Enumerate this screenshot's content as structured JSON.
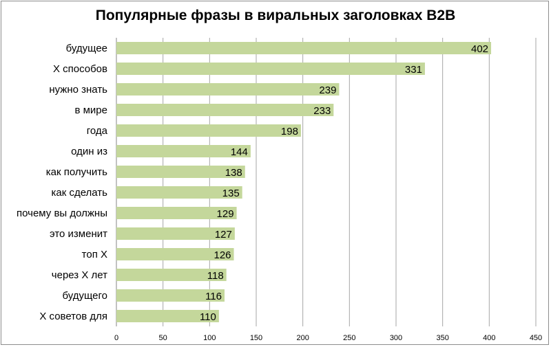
{
  "chart_data": {
    "type": "bar",
    "orientation": "horizontal",
    "title": "Популярные фразы в виральных заголовках B2B",
    "xlabel": "",
    "ylabel": "",
    "categories": [
      "будущее",
      "X способов",
      "нужно знать",
      "в мире",
      "года",
      "один из",
      "как получить",
      "как сделать",
      "почему вы должны",
      "это изменит",
      "топ X",
      "через X лет",
      "будущего",
      "X советов для"
    ],
    "values": [
      402,
      331,
      239,
      233,
      198,
      144,
      138,
      135,
      129,
      127,
      126,
      118,
      116,
      110
    ],
    "xlim": [
      0,
      450
    ],
    "xticks": [
      0,
      50,
      100,
      150,
      200,
      250,
      300,
      350,
      400,
      450
    ],
    "grid": "vertical",
    "legend": "none",
    "data_labels": true,
    "bar_color": "#c4d79b",
    "grid_color": "#a6a6a6"
  }
}
